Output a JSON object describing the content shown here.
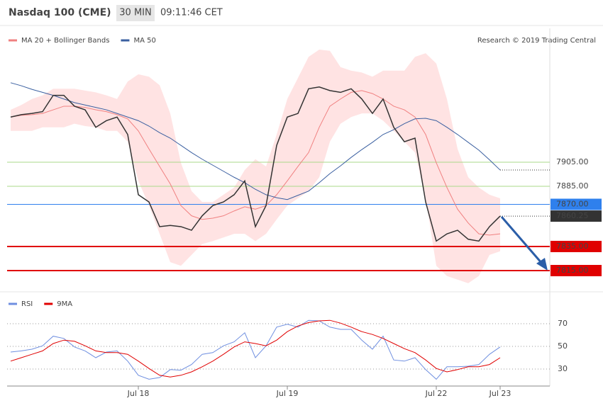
{
  "header": {
    "instrument": "Nasdaq 100 (CME)",
    "interval": "30 MIN",
    "time": "09:11:46 CET"
  },
  "credit": "Research © 2019 Trading Central",
  "chart_data": [
    {
      "type": "line",
      "ylim": [
        7796,
        8000
      ],
      "close": [
        7942.5,
        7944.5,
        7945.5,
        7947,
        7960.5,
        7960.5,
        7951.5,
        7948.5,
        7934,
        7939.5,
        7942.5,
        7928,
        7878,
        7872,
        7851.5,
        7852.5,
        7851.5,
        7848.5,
        7860.5,
        7869,
        7872,
        7878,
        7889.5,
        7851.5,
        7869,
        7919,
        7942.5,
        7945.5,
        7966,
        7967.5,
        7964.5,
        7963,
        7966,
        7957.5,
        7945.5,
        7957.5,
        7934,
        7922,
        7925,
        7872,
        7839.5,
        7845.5,
        7848.5,
        7841,
        7839.5,
        7851.5,
        7860.25
      ],
      "close_color": "#333333",
      "last_label": "7860.25",
      "series": [
        {
          "name": "MA 20 + Bollinger Bands",
          "color": "#f08080",
          "band_color": "#ffdcdc",
          "values": [
            7942.5,
            7944,
            7944.5,
            7945.5,
            7948.5,
            7951.5,
            7951.5,
            7950.5,
            7948.5,
            7947,
            7944.5,
            7941,
            7931,
            7916,
            7901.5,
            7887,
            7869,
            7860.5,
            7857.5,
            7858.5,
            7860.5,
            7864.5,
            7868,
            7866,
            7869,
            7878,
            7889.5,
            7901.5,
            7913,
            7934,
            7951.5,
            7957.5,
            7963,
            7964.5,
            7962,
            7957.5,
            7951.5,
            7948.5,
            7942.5,
            7928,
            7904.5,
            7884,
            7866,
            7854.5,
            7845.5,
            7844.5,
            7845.5
          ],
          "upper": [
            7948.5,
            7952.5,
            7957.5,
            7960.5,
            7966,
            7966,
            7966,
            7964.5,
            7963,
            7960.5,
            7957.5,
            7972,
            7978,
            7976,
            7969,
            7945.5,
            7904.5,
            7881,
            7872,
            7872,
            7878,
            7884,
            7898.5,
            7907.5,
            7901.5,
            7928,
            7957.5,
            7975,
            7992.5,
            7998.5,
            7997.5,
            7984,
            7981,
            7979.5,
            7976,
            7981,
            7981,
            7981,
            7992.5,
            7995.5,
            7987,
            7957.5,
            7916,
            7892.5,
            7884,
            7878,
            7875
          ],
          "lower": [
            7931,
            7931,
            7931,
            7934,
            7934,
            7934,
            7937,
            7935,
            7934,
            7931,
            7931,
            7922,
            7889.5,
            7869,
            7845.5,
            7822,
            7819,
            7828,
            7837,
            7839.5,
            7842.5,
            7845.5,
            7845.5,
            7839.5,
            7845.5,
            7857.5,
            7869,
            7875,
            7881,
            7892.5,
            7922,
            7937,
            7942.5,
            7945.5,
            7945.5,
            7939.5,
            7931,
            7922,
            7913,
            7875,
            7819,
            7810.5,
            7807.5,
            7804.5,
            7810.5,
            7828,
            7831
          ]
        },
        {
          "name": "MA 50",
          "color": "#3a5fa0",
          "values": [
            7971,
            7968.5,
            7965.5,
            7963,
            7960.5,
            7957.5,
            7954.5,
            7952.5,
            7950.5,
            7948.5,
            7945.5,
            7942.5,
            7939.5,
            7935,
            7929.5,
            7925,
            7919,
            7913,
            7907.5,
            7902.5,
            7897.5,
            7892.5,
            7888,
            7882.5,
            7878,
            7875.5,
            7874,
            7877.5,
            7881,
            7888,
            7895.5,
            7902,
            7909,
            7915.5,
            7921.5,
            7928,
            7932,
            7937,
            7941,
            7941.5,
            7939.5,
            7934,
            7928,
            7921.5,
            7915,
            7907,
            7898.5
          ]
        }
      ],
      "levels": [
        {
          "value": 7905,
          "label": "7905.00",
          "color": "#a8d88a",
          "boxed": false
        },
        {
          "value": 7885,
          "label": "7885.00",
          "color": "#a8d88a",
          "boxed": false
        },
        {
          "value": 7870,
          "label": "7870.00",
          "color": "#2f80ed",
          "boxed": true
        },
        {
          "value": 7835,
          "label": "7835.00",
          "color": "#e00000",
          "boxed": true
        },
        {
          "value": 7815,
          "label": "7815.00",
          "color": "#e00000",
          "boxed": true
        }
      ]
    },
    {
      "type": "line",
      "categories": [
        null,
        null,
        null,
        null,
        null,
        null,
        null,
        null,
        null,
        null,
        null,
        null,
        "Jul 18",
        null,
        null,
        null,
        null,
        null,
        null,
        null,
        null,
        null,
        null,
        null,
        null,
        null,
        "Jul 19",
        null,
        null,
        null,
        null,
        null,
        null,
        null,
        null,
        null,
        null,
        null,
        null,
        null,
        "Jul 22",
        null,
        null,
        null,
        null,
        null,
        "Jul 23"
      ],
      "ylim": [
        18,
        93
      ],
      "yticks": [
        30,
        50,
        70
      ],
      "grid": true,
      "series": [
        {
          "name": "RSI",
          "color": "#6f8fe0",
          "values": [
            45,
            46,
            47.5,
            50.5,
            59,
            57,
            49.5,
            46,
            40,
            45,
            46,
            37,
            24.5,
            21,
            22.5,
            29.5,
            29,
            34,
            43,
            44.5,
            50.5,
            54,
            62,
            40,
            50.5,
            67,
            69.5,
            67,
            73,
            72.5,
            67,
            65,
            65,
            55.5,
            47.5,
            59,
            38,
            37,
            40,
            29.5,
            21,
            32,
            32,
            32.5,
            34,
            43,
            49.5
          ]
        },
        {
          "name": "9MA",
          "color": "#e00000",
          "values": [
            37,
            40,
            43,
            46,
            52.5,
            55.5,
            54.5,
            50.5,
            46,
            44.5,
            44.5,
            43,
            37,
            30.5,
            24.5,
            23,
            24.5,
            27.5,
            32,
            37,
            43,
            49.5,
            54,
            52.5,
            50.5,
            55.5,
            63,
            68,
            71,
            72.5,
            73,
            70.5,
            67,
            63,
            60.5,
            57,
            52.5,
            48,
            44.5,
            38,
            30.5,
            27.5,
            29.5,
            32,
            32,
            34,
            40
          ]
        }
      ]
    }
  ]
}
